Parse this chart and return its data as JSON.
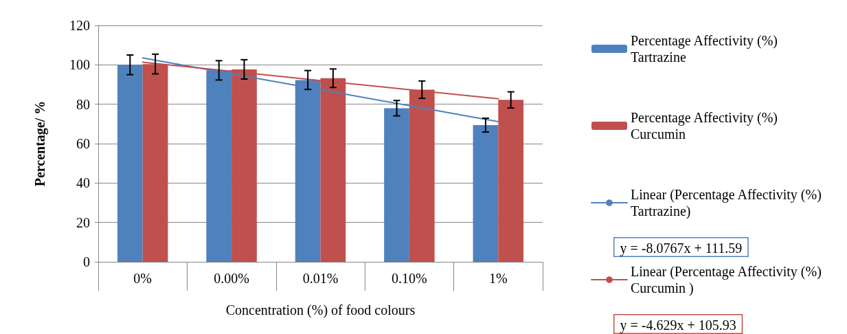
{
  "chart_data": {
    "type": "bar",
    "xlabel": "Concentration (%) of food colours",
    "ylabel": "Percentage/ %",
    "categories": [
      "0%",
      "0.00%",
      "0.01%",
      "0.10%",
      "1%"
    ],
    "series": [
      {
        "name": "Percentage Affectivity (%) Tartrazine",
        "color": "#4f81bd",
        "values": [
          100,
          97.2,
          92.3,
          78,
          69.4
        ],
        "errors": [
          5,
          4.9,
          4.8,
          3.9,
          3.5
        ]
      },
      {
        "name": "Percentage Affectivity (%) Curcumin",
        "color": "#c0504d",
        "values": [
          100.4,
          97.7,
          93.2,
          87.4,
          82.2
        ],
        "errors": [
          5,
          4.9,
          4.7,
          4.4,
          4.1
        ]
      },
      {
        "name": "Linear (Percentage Affectivity (%) Tartrazine)",
        "type": "line",
        "color": "#4f81bd",
        "values": [
          103.5,
          95.4,
          87.4,
          79.3,
          71.2
        ]
      },
      {
        "name": "Linear (Percentage Affectivity (%) Curcumin )",
        "type": "line",
        "color": "#c0504d",
        "values": [
          101.3,
          96.7,
          92.0,
          87.4,
          82.8
        ]
      }
    ],
    "annotations": [
      "y = -8.0767x + 111.59",
      "y = -4.629x + 105.93"
    ],
    "ylim": [
      0,
      120
    ],
    "yticks": [
      0,
      20,
      40,
      60,
      80,
      100,
      120
    ],
    "grid": "y",
    "legend": "right",
    "marker": "none",
    "line_style": "solid"
  }
}
